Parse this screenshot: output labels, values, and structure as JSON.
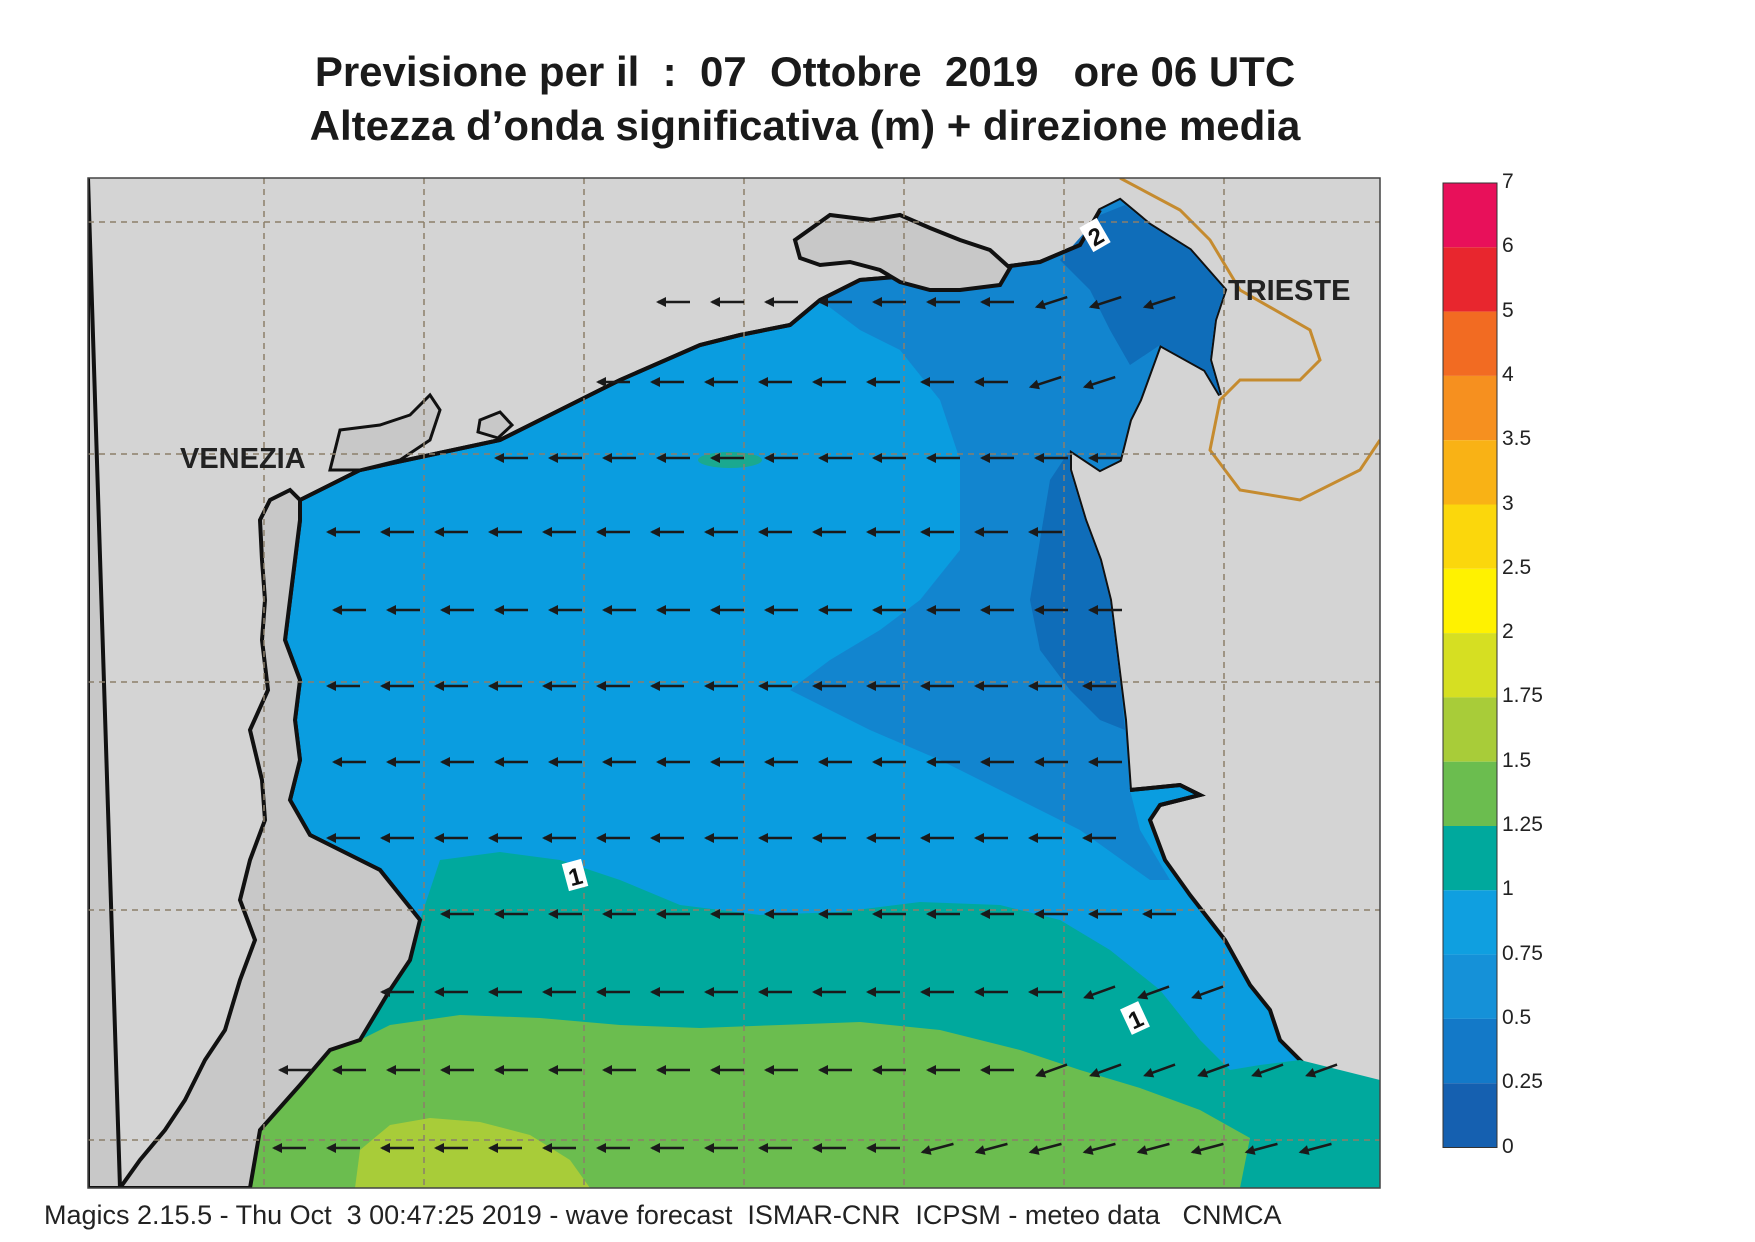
{
  "title": {
    "line1": "Previsione per il  :  07  Ottobre  2019   ore 06 UTC",
    "line2": "Altezza d’onda significativa (m) + direzione media"
  },
  "cities": {
    "venezia": "VENEZIA",
    "trieste": "TRIESTE"
  },
  "contour_labels": [
    "1",
    "1",
    "2"
  ],
  "legend": {
    "labels": [
      "7",
      "6",
      "5",
      "4",
      "3.5",
      "3",
      "2.5",
      "2",
      "1.75",
      "1.5",
      "1.25",
      "1",
      "0.75",
      "0.5",
      "0.25",
      "0"
    ],
    "colors": [
      "#e8105a",
      "#e8262e",
      "#f26b22",
      "#f6901f",
      "#f9b215",
      "#fbd70c",
      "#fff200",
      "#d6df22",
      "#a8cc39",
      "#6bbd4f",
      "#00a99d",
      "#0f9fe0",
      "#1591d8",
      "#1379c8",
      "#1560b0"
    ]
  },
  "footer": "Magics 2.15.5 - Thu Oct  3 00:47:25 2019 - wave forecast  ISMAR-CNR  ICPSM - meteo data   CNMCA"
}
